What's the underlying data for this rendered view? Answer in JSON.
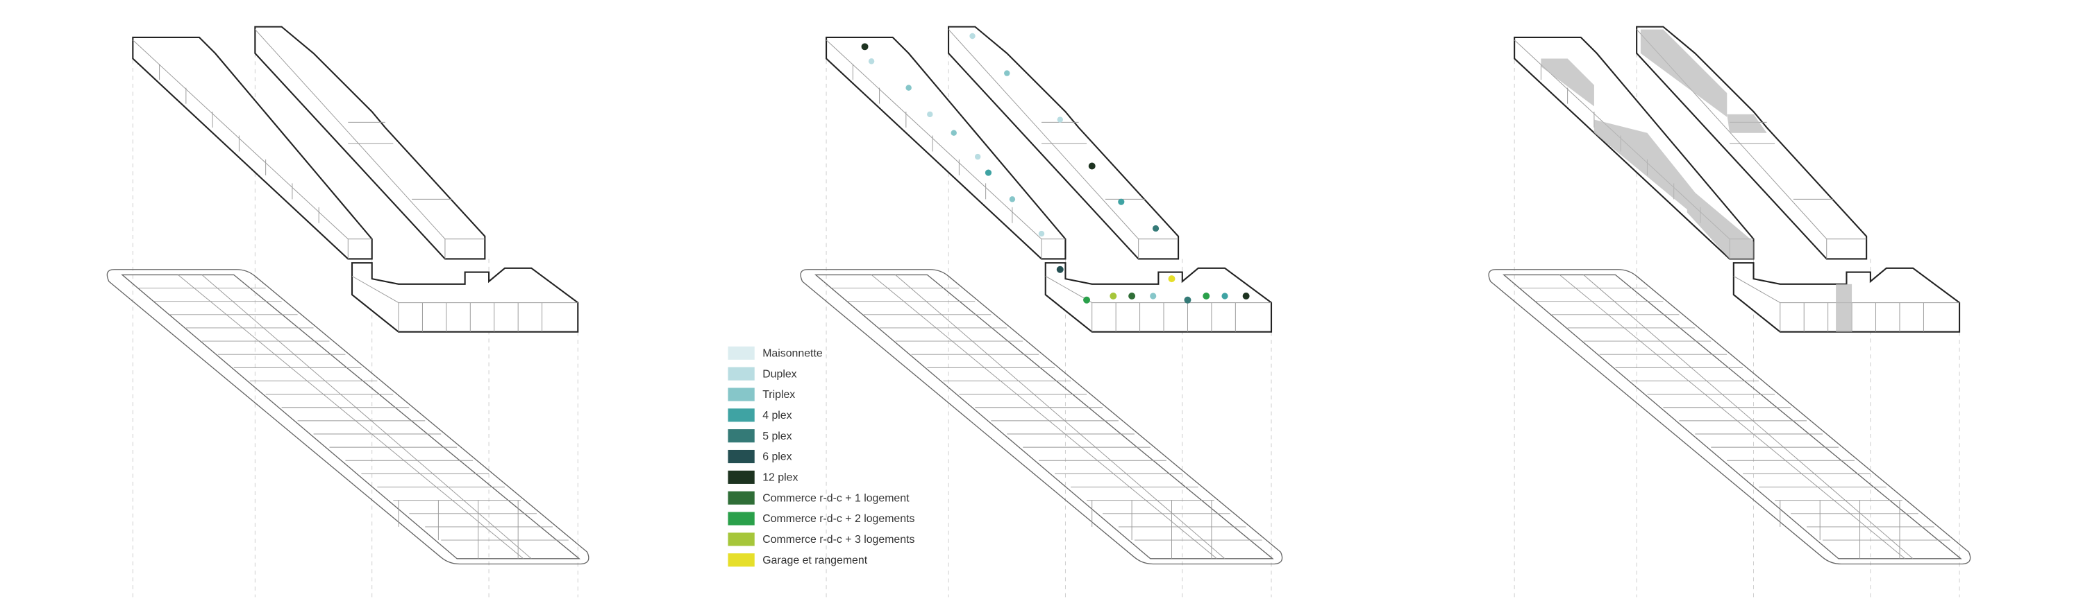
{
  "legend": [
    {
      "label": "Maisonnette",
      "color": "#dcedf0"
    },
    {
      "label": "Duplex",
      "color": "#b9dde2"
    },
    {
      "label": "Triplex",
      "color": "#86c6c9"
    },
    {
      "label": "4 plex",
      "color": "#3fa3a3"
    },
    {
      "label": "5 plex",
      "color": "#347a77"
    },
    {
      "label": "6 plex",
      "color": "#244f52"
    },
    {
      "label": "12 plex",
      "color": "#1d3320"
    },
    {
      "label": "Commerce r-d-c + 1 logement",
      "color": "#2f6e37"
    },
    {
      "label": "Commerce r-d-c + 2 logements",
      "color": "#2aa04a"
    },
    {
      "label": "Commerce r-d-c + 3 logements",
      "color": "#a6c63a"
    },
    {
      "label": "Garage et rangement",
      "color": "#e6df2a"
    }
  ]
}
